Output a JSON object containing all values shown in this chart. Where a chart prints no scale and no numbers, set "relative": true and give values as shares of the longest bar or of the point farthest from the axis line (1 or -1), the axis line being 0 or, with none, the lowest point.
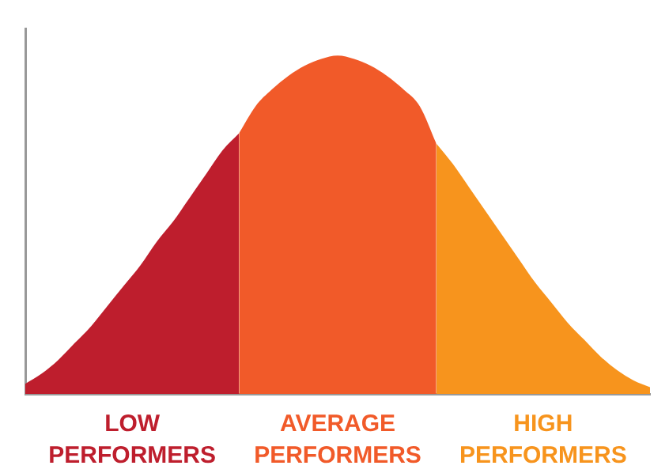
{
  "chart_data": {
    "type": "area",
    "relative": true,
    "grid": false,
    "legend": false,
    "categories": [
      null,
      null,
      null,
      null,
      null,
      null,
      null,
      null,
      null,
      null,
      null,
      null,
      null,
      null,
      null,
      null,
      null,
      null,
      null,
      null,
      null,
      null,
      null,
      null,
      null,
      null,
      null,
      null,
      null,
      null,
      null,
      null,
      null,
      null,
      null,
      null,
      null,
      null,
      null
    ],
    "series": [
      {
        "name": "LOW PERFORMERS",
        "color": "#be1e2d",
        "values": [
          0.03,
          0.06,
          0.1,
          0.15,
          0.2,
          0.26,
          0.32,
          0.38,
          0.45,
          0.51,
          0.58,
          0.65,
          0.72,
          0.77,
          null,
          null,
          null,
          null,
          null,
          null,
          null,
          null,
          null,
          null,
          null,
          null,
          null,
          null,
          null,
          null,
          null,
          null,
          null,
          null,
          null,
          null,
          null,
          null,
          null
        ]
      },
      {
        "name": "AVERAGE PERFORMERS",
        "color": "#f15a29",
        "values": [
          null,
          null,
          null,
          null,
          null,
          null,
          null,
          null,
          null,
          null,
          null,
          null,
          null,
          0.77,
          0.85,
          0.9,
          0.94,
          0.97,
          0.99,
          1,
          0.99,
          0.97,
          0.94,
          0.9,
          0.85,
          0.74,
          null,
          null,
          null,
          null,
          null,
          null,
          null,
          null,
          null,
          null,
          null,
          null,
          null
        ]
      },
      {
        "name": "HIGH PERFORMERS",
        "color": "#f7941d",
        "values": [
          null,
          null,
          null,
          null,
          null,
          null,
          null,
          null,
          null,
          null,
          null,
          null,
          null,
          null,
          null,
          null,
          null,
          null,
          null,
          null,
          null,
          null,
          null,
          null,
          null,
          0.74,
          0.68,
          0.61,
          0.54,
          0.47,
          0.4,
          0.33,
          0.27,
          0.21,
          0.16,
          0.11,
          0.07,
          0.04,
          0.02
        ]
      }
    ]
  }
}
